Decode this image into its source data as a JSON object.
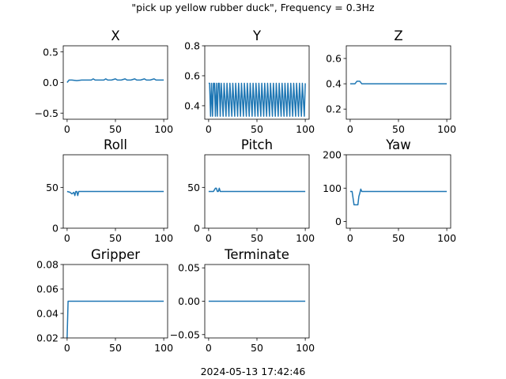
{
  "figure": {
    "suptitle": "\"pick up yellow rubber duck\", Frequency = 0.3Hz",
    "footer": "2024-05-13 17:42:46",
    "line_color": "#1f77b4",
    "background": "#ffffff"
  },
  "chart_data": [
    {
      "type": "line",
      "title": "X",
      "xlim": [
        -4,
        104
      ],
      "ylim": [
        -0.6,
        0.6
      ],
      "xticks": [
        0,
        50,
        100
      ],
      "xtick_labels": [
        "0",
        "50",
        "100"
      ],
      "yticks": [
        -0.5,
        0.0,
        0.5
      ],
      "ytick_labels": [
        "−0.5",
        "0.0",
        "0.5"
      ],
      "grid": false,
      "legend": "none",
      "series": [
        {
          "x": [
            0,
            2,
            5,
            10,
            15,
            20,
            25,
            27,
            29,
            33,
            38,
            40,
            42,
            46,
            50,
            52,
            56,
            60,
            62,
            66,
            70,
            72,
            76,
            80,
            82,
            86,
            90,
            92,
            96,
            100
          ],
          "y": [
            0.0,
            0.04,
            0.04,
            0.03,
            0.04,
            0.04,
            0.04,
            0.06,
            0.04,
            0.04,
            0.04,
            0.06,
            0.04,
            0.04,
            0.06,
            0.04,
            0.04,
            0.06,
            0.04,
            0.04,
            0.06,
            0.04,
            0.04,
            0.06,
            0.04,
            0.04,
            0.06,
            0.04,
            0.04,
            0.04
          ]
        }
      ]
    },
    {
      "type": "line",
      "title": "Y",
      "xlim": [
        -4,
        104
      ],
      "ylim": [
        0.31,
        0.8
      ],
      "xticks": [
        0,
        50,
        100
      ],
      "xtick_labels": [
        "0",
        "50",
        "100"
      ],
      "yticks": [
        0.4,
        0.6,
        0.8
      ],
      "ytick_labels": [
        "0.4",
        "0.6",
        "0.8"
      ],
      "grid": false,
      "legend": "none",
      "series": [
        {
          "x": [
            0,
            1,
            2,
            3,
            4,
            5,
            6,
            7,
            8,
            9,
            10,
            11,
            12,
            13,
            15,
            16,
            18,
            19,
            21,
            22,
            24,
            25,
            27,
            28,
            30,
            31,
            33,
            34,
            36,
            37,
            39,
            40,
            42,
            43,
            45,
            46,
            48,
            49,
            51,
            52,
            54,
            55,
            57,
            58,
            60,
            61,
            63,
            64,
            66,
            67,
            69,
            70,
            72,
            73,
            75,
            76,
            78,
            79,
            81,
            82,
            84,
            85,
            87,
            88,
            90,
            91,
            93,
            94,
            96,
            97,
            99,
            100
          ],
          "y": [
            0.55,
            0.55,
            0.33,
            0.55,
            0.33,
            0.55,
            0.55,
            0.33,
            0.55,
            0.33,
            0.55,
            0.55,
            0.33,
            0.55,
            0.33,
            0.55,
            0.33,
            0.55,
            0.33,
            0.55,
            0.33,
            0.55,
            0.33,
            0.55,
            0.33,
            0.55,
            0.33,
            0.55,
            0.33,
            0.55,
            0.33,
            0.55,
            0.33,
            0.55,
            0.33,
            0.55,
            0.33,
            0.55,
            0.33,
            0.55,
            0.33,
            0.55,
            0.33,
            0.55,
            0.33,
            0.55,
            0.33,
            0.55,
            0.33,
            0.55,
            0.33,
            0.55,
            0.33,
            0.55,
            0.33,
            0.55,
            0.33,
            0.55,
            0.33,
            0.55,
            0.33,
            0.55,
            0.33,
            0.55,
            0.33,
            0.55,
            0.33,
            0.55,
            0.33,
            0.55,
            0.33,
            0.55
          ]
        }
      ]
    },
    {
      "type": "line",
      "title": "Z",
      "xlim": [
        -4,
        104
      ],
      "ylim": [
        0.12,
        0.7
      ],
      "xticks": [
        0,
        50,
        100
      ],
      "xtick_labels": [
        "0",
        "50",
        "100"
      ],
      "yticks": [
        0.2,
        0.4,
        0.6
      ],
      "ytick_labels": [
        "0.2",
        "0.4",
        "0.6"
      ],
      "grid": false,
      "legend": "none",
      "series": [
        {
          "x": [
            0,
            5,
            7,
            10,
            12,
            15,
            100
          ],
          "y": [
            0.4,
            0.4,
            0.42,
            0.42,
            0.4,
            0.4,
            0.4
          ]
        }
      ]
    },
    {
      "type": "line",
      "title": "Roll",
      "xlim": [
        -4,
        104
      ],
      "ylim": [
        0,
        90
      ],
      "xticks": [
        0,
        50,
        100
      ],
      "xtick_labels": [
        "0",
        "50",
        "100"
      ],
      "yticks": [
        0,
        50
      ],
      "ytick_labels": [
        "0",
        "50"
      ],
      "grid": false,
      "legend": "none",
      "series": [
        {
          "x": [
            0,
            3,
            5,
            7,
            8,
            9,
            10,
            11,
            12,
            13,
            100
          ],
          "y": [
            45,
            44,
            42,
            44,
            40,
            45,
            45,
            40,
            45,
            45,
            45
          ]
        }
      ]
    },
    {
      "type": "line",
      "title": "Pitch",
      "xlim": [
        -4,
        104
      ],
      "ylim": [
        0,
        90
      ],
      "xticks": [
        0,
        50,
        100
      ],
      "xtick_labels": [
        "0",
        "50",
        "100"
      ],
      "yticks": [
        0,
        50
      ],
      "ytick_labels": [
        "0",
        "50"
      ],
      "grid": false,
      "legend": "none",
      "series": [
        {
          "x": [
            0,
            5,
            7,
            8,
            9,
            10,
            11,
            12,
            13,
            100
          ],
          "y": [
            45,
            45,
            49,
            49,
            45,
            45,
            49,
            45,
            45,
            45
          ]
        }
      ]
    },
    {
      "type": "line",
      "title": "Yaw",
      "xlim": [
        -4,
        104
      ],
      "ylim": [
        -20,
        200
      ],
      "xticks": [
        0,
        50,
        100
      ],
      "xtick_labels": [
        "0",
        "50",
        "100"
      ],
      "yticks": [
        0,
        100,
        200
      ],
      "ytick_labels": [
        "0",
        "100",
        "200"
      ],
      "grid": false,
      "legend": "none",
      "series": [
        {
          "x": [
            0,
            2,
            3,
            4,
            8,
            9,
            10,
            11,
            12,
            13,
            100
          ],
          "y": [
            90,
            90,
            70,
            50,
            50,
            75,
            85,
            97,
            90,
            90,
            90
          ]
        }
      ]
    },
    {
      "type": "line",
      "title": "Gripper",
      "xlim": [
        -4,
        104
      ],
      "ylim": [
        0.02,
        0.08
      ],
      "xticks": [
        0,
        50,
        100
      ],
      "xtick_labels": [
        "0",
        "50",
        "100"
      ],
      "yticks": [
        0.02,
        0.04,
        0.06,
        0.08
      ],
      "ytick_labels": [
        "0.02",
        "0.04",
        "0.06",
        "0.08"
      ],
      "grid": false,
      "legend": "none",
      "series": [
        {
          "x": [
            0,
            1,
            100
          ],
          "y": [
            0.02,
            0.05,
            0.05
          ]
        }
      ]
    },
    {
      "type": "line",
      "title": "Terminate",
      "xlim": [
        -4,
        104
      ],
      "ylim": [
        -0.055,
        0.055
      ],
      "xticks": [
        0,
        50,
        100
      ],
      "xtick_labels": [
        "0",
        "50",
        "100"
      ],
      "yticks": [
        -0.05,
        0.0,
        0.05
      ],
      "ytick_labels": [
        "−0.05",
        "0.00",
        "0.05"
      ],
      "grid": false,
      "legend": "none",
      "series": [
        {
          "x": [
            0,
            100
          ],
          "y": [
            0,
            0
          ]
        }
      ]
    }
  ]
}
